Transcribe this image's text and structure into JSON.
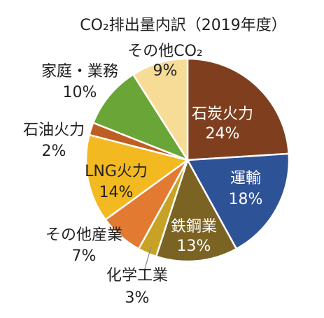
{
  "chart_data": {
    "type": "pie",
    "title": "CO₂排出量内訳（2019年度）",
    "slices": [
      {
        "label": "石炭火力",
        "value": 24,
        "display": "24%",
        "color": "#7f3f1f",
        "label_pos": "inside",
        "label_color": "#ffffff"
      },
      {
        "label": "運輸",
        "value": 18,
        "display": "18%",
        "color": "#2e5296",
        "label_pos": "inside",
        "label_color": "#ffffff"
      },
      {
        "label": "鉄鋼業",
        "value": 13,
        "display": "13%",
        "color": "#7b6323",
        "label_pos": "inside",
        "label_color": "#ffffff"
      },
      {
        "label": "化学工業",
        "value": 3,
        "display": "3%",
        "color": "#c7a224",
        "label_pos": "outside",
        "label_color": "#222222"
      },
      {
        "label": "その他産業",
        "value": 7,
        "display": "7%",
        "color": "#e27a31",
        "label_pos": "outside",
        "label_color": "#222222"
      },
      {
        "label": "LNG火力",
        "value": 14,
        "display": "14%",
        "color": "#f2b920",
        "label_pos": "inside",
        "label_color": "#222222"
      },
      {
        "label": "石油火力",
        "value": 2,
        "display": "2%",
        "color": "#bf5e22",
        "label_pos": "outside",
        "label_color": "#222222"
      },
      {
        "label": "家庭・業務",
        "value": 10,
        "display": "10%",
        "color": "#6aa538",
        "label_pos": "outside",
        "label_color": "#222222"
      },
      {
        "label": "その他CO₂",
        "value": 9,
        "display": "9%",
        "color": "#f7dc98",
        "label_pos": "inside",
        "label_color": "#222222"
      }
    ]
  }
}
